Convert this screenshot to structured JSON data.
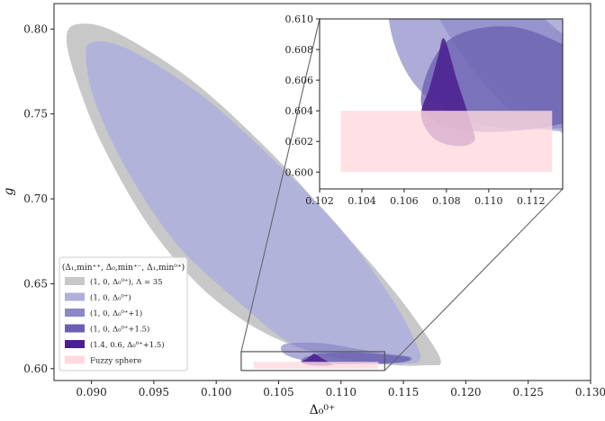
{
  "chart_data": {
    "type": "area",
    "xlabel": "Δ₀⁰⁺",
    "ylabel": "g",
    "xlim": [
      0.087,
      0.13
    ],
    "ylim": [
      0.593,
      0.815
    ],
    "xticks": [
      "0.090",
      "0.095",
      "0.100",
      "0.105",
      "0.110",
      "0.115",
      "0.120",
      "0.125",
      "0.130"
    ],
    "yticks": [
      "0.60",
      "0.65",
      "0.70",
      "0.75",
      "0.80"
    ],
    "legend": {
      "title": "(Δ₁,min⁺⁺, Δ₀,min⁺⁻, Δ₁,min⁰⁺)",
      "placement": "lower-left",
      "entries": [
        {
          "label": "(1, 0, Δ₀⁰⁺), Λ = 35",
          "color": "#c8c8c8"
        },
        {
          "label": "(1, 0, Δ₀⁰⁺)",
          "color": "#aeb0db"
        },
        {
          "label": "(1, 0, Δ₀⁰⁺+1)",
          "color": "#8a88c6"
        },
        {
          "label": "(1, 0, Δ₀⁰⁺+1.5)",
          "color": "#6a5fb0"
        },
        {
          "label": "(1.4, 0.6, Δ₀⁰⁺+1.5)",
          "color": "#4b1d8f"
        },
        {
          "label": "Fuzzy sphere",
          "color": "#ffd9de"
        }
      ]
    },
    "regions": [
      {
        "name": "(1, 0, Δ₀⁰⁺), Λ = 35",
        "color": "#c8c8c8",
        "x": [
          0.089,
          0.092,
          0.098,
          0.104,
          0.109,
          0.114,
          0.117,
          0.118,
          0.117,
          0.113,
          0.106,
          0.1,
          0.095,
          0.091,
          0.0888,
          0.088,
          0.089
        ],
        "y": [
          0.803,
          0.798,
          0.77,
          0.73,
          0.69,
          0.648,
          0.618,
          0.604,
          0.602,
          0.603,
          0.614,
          0.64,
          0.68,
          0.73,
          0.77,
          0.795,
          0.803
        ]
      },
      {
        "name": "(1, 0, Δ₀⁰⁺)",
        "color": "#aeb0db",
        "x": [
          0.09,
          0.093,
          0.099,
          0.105,
          0.11,
          0.114,
          0.116,
          0.1163,
          0.115,
          0.111,
          0.106,
          0.102,
          0.097,
          0.093,
          0.0904,
          0.0896,
          0.09
        ],
        "y": [
          0.792,
          0.788,
          0.76,
          0.72,
          0.682,
          0.642,
          0.615,
          0.605,
          0.603,
          0.604,
          0.615,
          0.638,
          0.672,
          0.715,
          0.755,
          0.78,
          0.792
        ]
      },
      {
        "name": "(1, 0, Δ₀⁰⁺+1)",
        "color": "#8a88c6",
        "x": [
          0.1052,
          0.106,
          0.1085,
          0.111,
          0.1135,
          0.1155,
          0.1155,
          0.114,
          0.11,
          0.107,
          0.1055,
          0.1052
        ],
        "y": [
          0.613,
          0.615,
          0.615,
          0.612,
          0.609,
          0.607,
          0.6045,
          0.603,
          0.603,
          0.605,
          0.6085,
          0.613
        ]
      },
      {
        "name": "(1, 0, Δ₀⁰⁺+1.5)",
        "color": "#6a5fb0",
        "x": [
          0.1068,
          0.108,
          0.111,
          0.114,
          0.1155,
          0.115,
          0.112,
          0.1085,
          0.1068
        ],
        "y": [
          0.6045,
          0.6085,
          0.6095,
          0.608,
          0.6065,
          0.604,
          0.6028,
          0.6028,
          0.6045
        ]
      },
      {
        "name": "(1.4, 0.6, Δ₀⁰⁺+1.5)",
        "color": "#4b1d8f",
        "x": [
          0.1068,
          0.1072,
          0.1076,
          0.1079,
          0.1085,
          0.1092,
          0.1093,
          0.1085,
          0.1074,
          0.1068
        ],
        "y": [
          0.6037,
          0.6055,
          0.6075,
          0.6087,
          0.606,
          0.603,
          0.602,
          0.6017,
          0.6022,
          0.6037
        ]
      }
    ],
    "fuzzy_sphere": {
      "name": "Fuzzy sphere",
      "color": "#ffd9de",
      "x": [
        0.103,
        0.113
      ],
      "y": [
        0.6,
        0.604
      ]
    },
    "inset": {
      "xlim": [
        0.102,
        0.1135
      ],
      "ylim": [
        0.5989,
        0.61
      ],
      "xticks": [
        "0.102",
        "0.104",
        "0.106",
        "0.108",
        "0.110",
        "0.112"
      ],
      "yticks": [
        "0.600",
        "0.602",
        "0.604",
        "0.606",
        "0.608",
        "0.610"
      ]
    }
  }
}
